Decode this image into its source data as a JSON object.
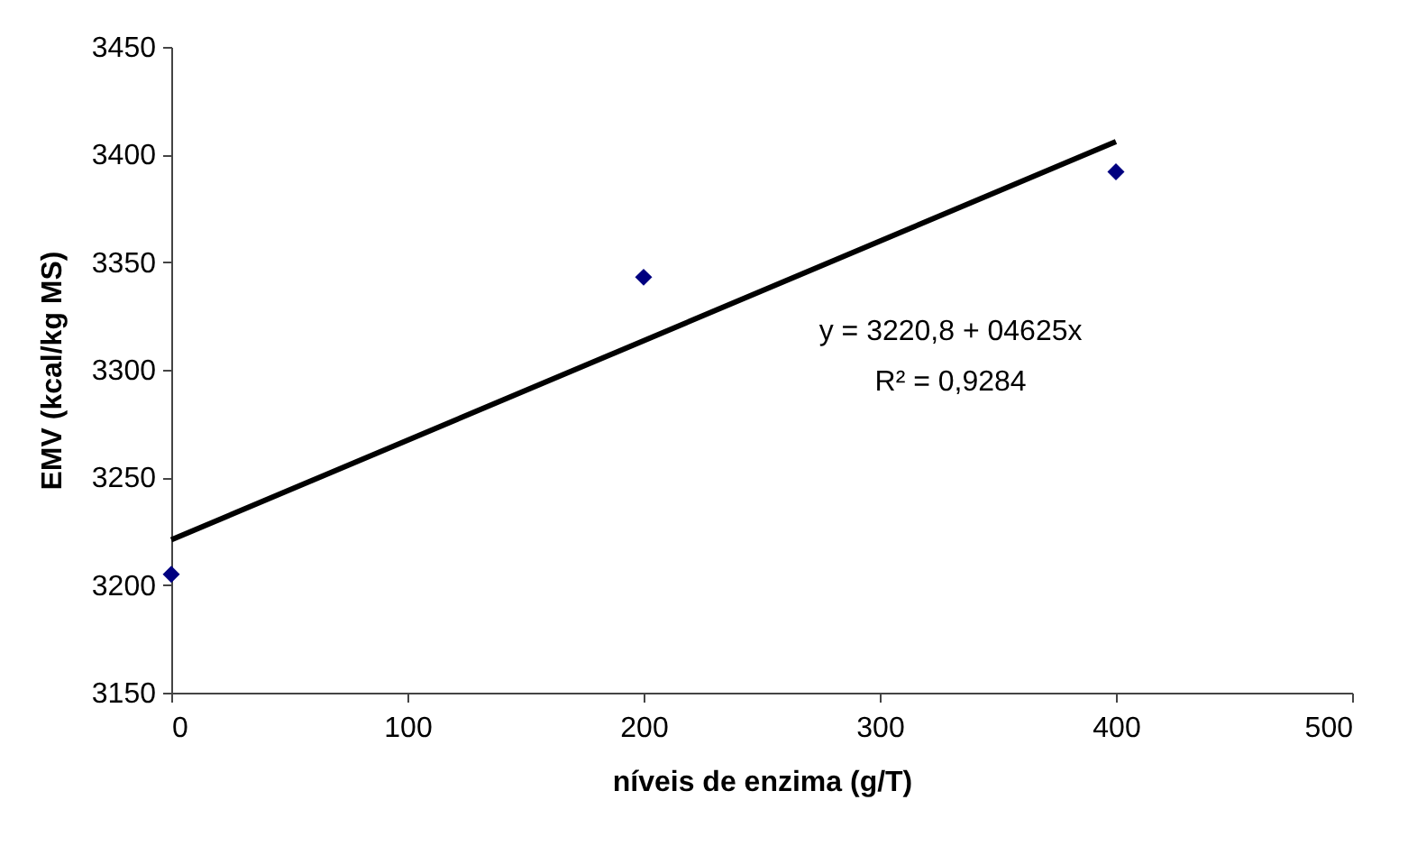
{
  "chart_data": {
    "type": "scatter",
    "xlabel": "níveis de enzima (g/T)",
    "ylabel": "EMV (kcal/kg MS)",
    "xlim": [
      0,
      500
    ],
    "xticks": [
      0,
      100,
      200,
      300,
      400,
      500
    ],
    "ylim": [
      3150,
      3450
    ],
    "yticks": [
      3150,
      3200,
      3250,
      3300,
      3350,
      3400,
      3450
    ],
    "grid": false,
    "marker": "diamond",
    "series": [
      {
        "color": "#000080",
        "x": [
          0,
          200,
          400
        ],
        "values": [
          3205,
          3343,
          3392
        ]
      },
      {
        "type": "line",
        "color": "#000000",
        "x": [
          0,
          400
        ],
        "values": [
          3221,
          3406
        ],
        "marker": "none",
        "line_style": "solid"
      }
    ],
    "annotations": [
      "y = 3220,8 + 04625x",
      "R² = 0,9284"
    ]
  }
}
